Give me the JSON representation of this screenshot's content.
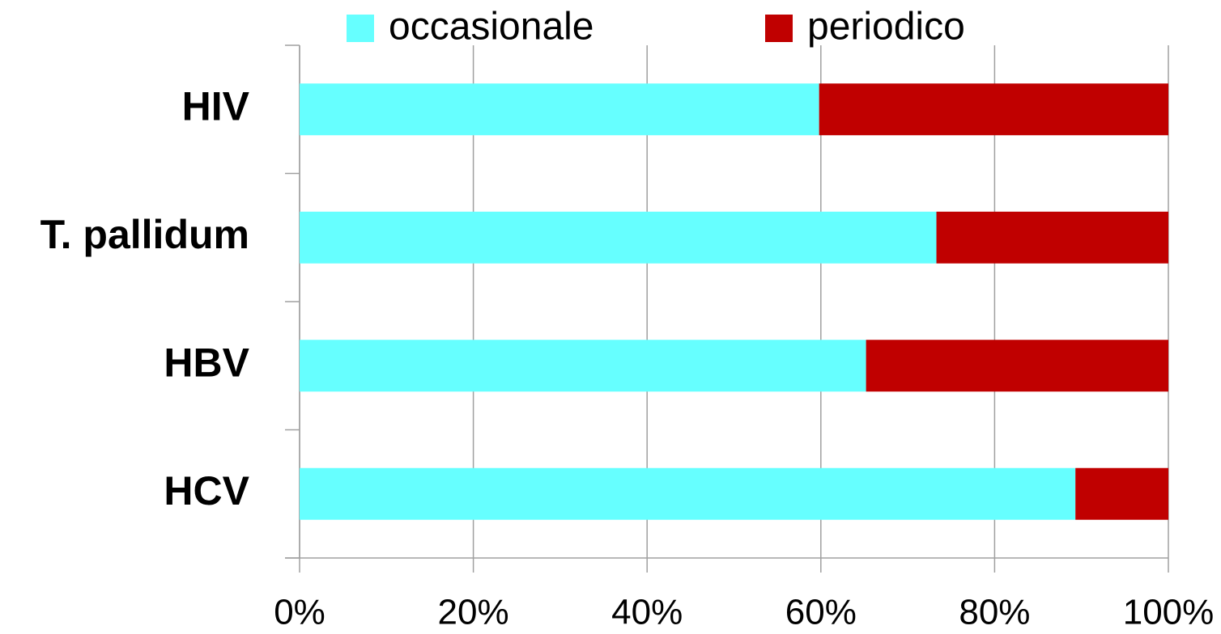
{
  "chart_data": {
    "type": "stacked-barh",
    "categories": [
      "HIV",
      "T. pallidum",
      "HBV",
      "HCV"
    ],
    "series": [
      {
        "name": "occasionale",
        "color": "#66ffff",
        "values": [
          59.8,
          73.3,
          65.2,
          89.3
        ]
      },
      {
        "name": "periodico",
        "color": "#c00000",
        "values": [
          40.2,
          26.7,
          34.8,
          10.7
        ]
      }
    ],
    "xlim": [
      0,
      100
    ],
    "xticks": [
      {
        "value": 0,
        "label": "0%"
      },
      {
        "value": 20,
        "label": "20%"
      },
      {
        "value": 40,
        "label": "40%"
      },
      {
        "value": 60,
        "label": "60%"
      },
      {
        "value": 80,
        "label": "80%"
      },
      {
        "value": 100,
        "label": "100%"
      }
    ],
    "grid": true,
    "legend": "top"
  }
}
